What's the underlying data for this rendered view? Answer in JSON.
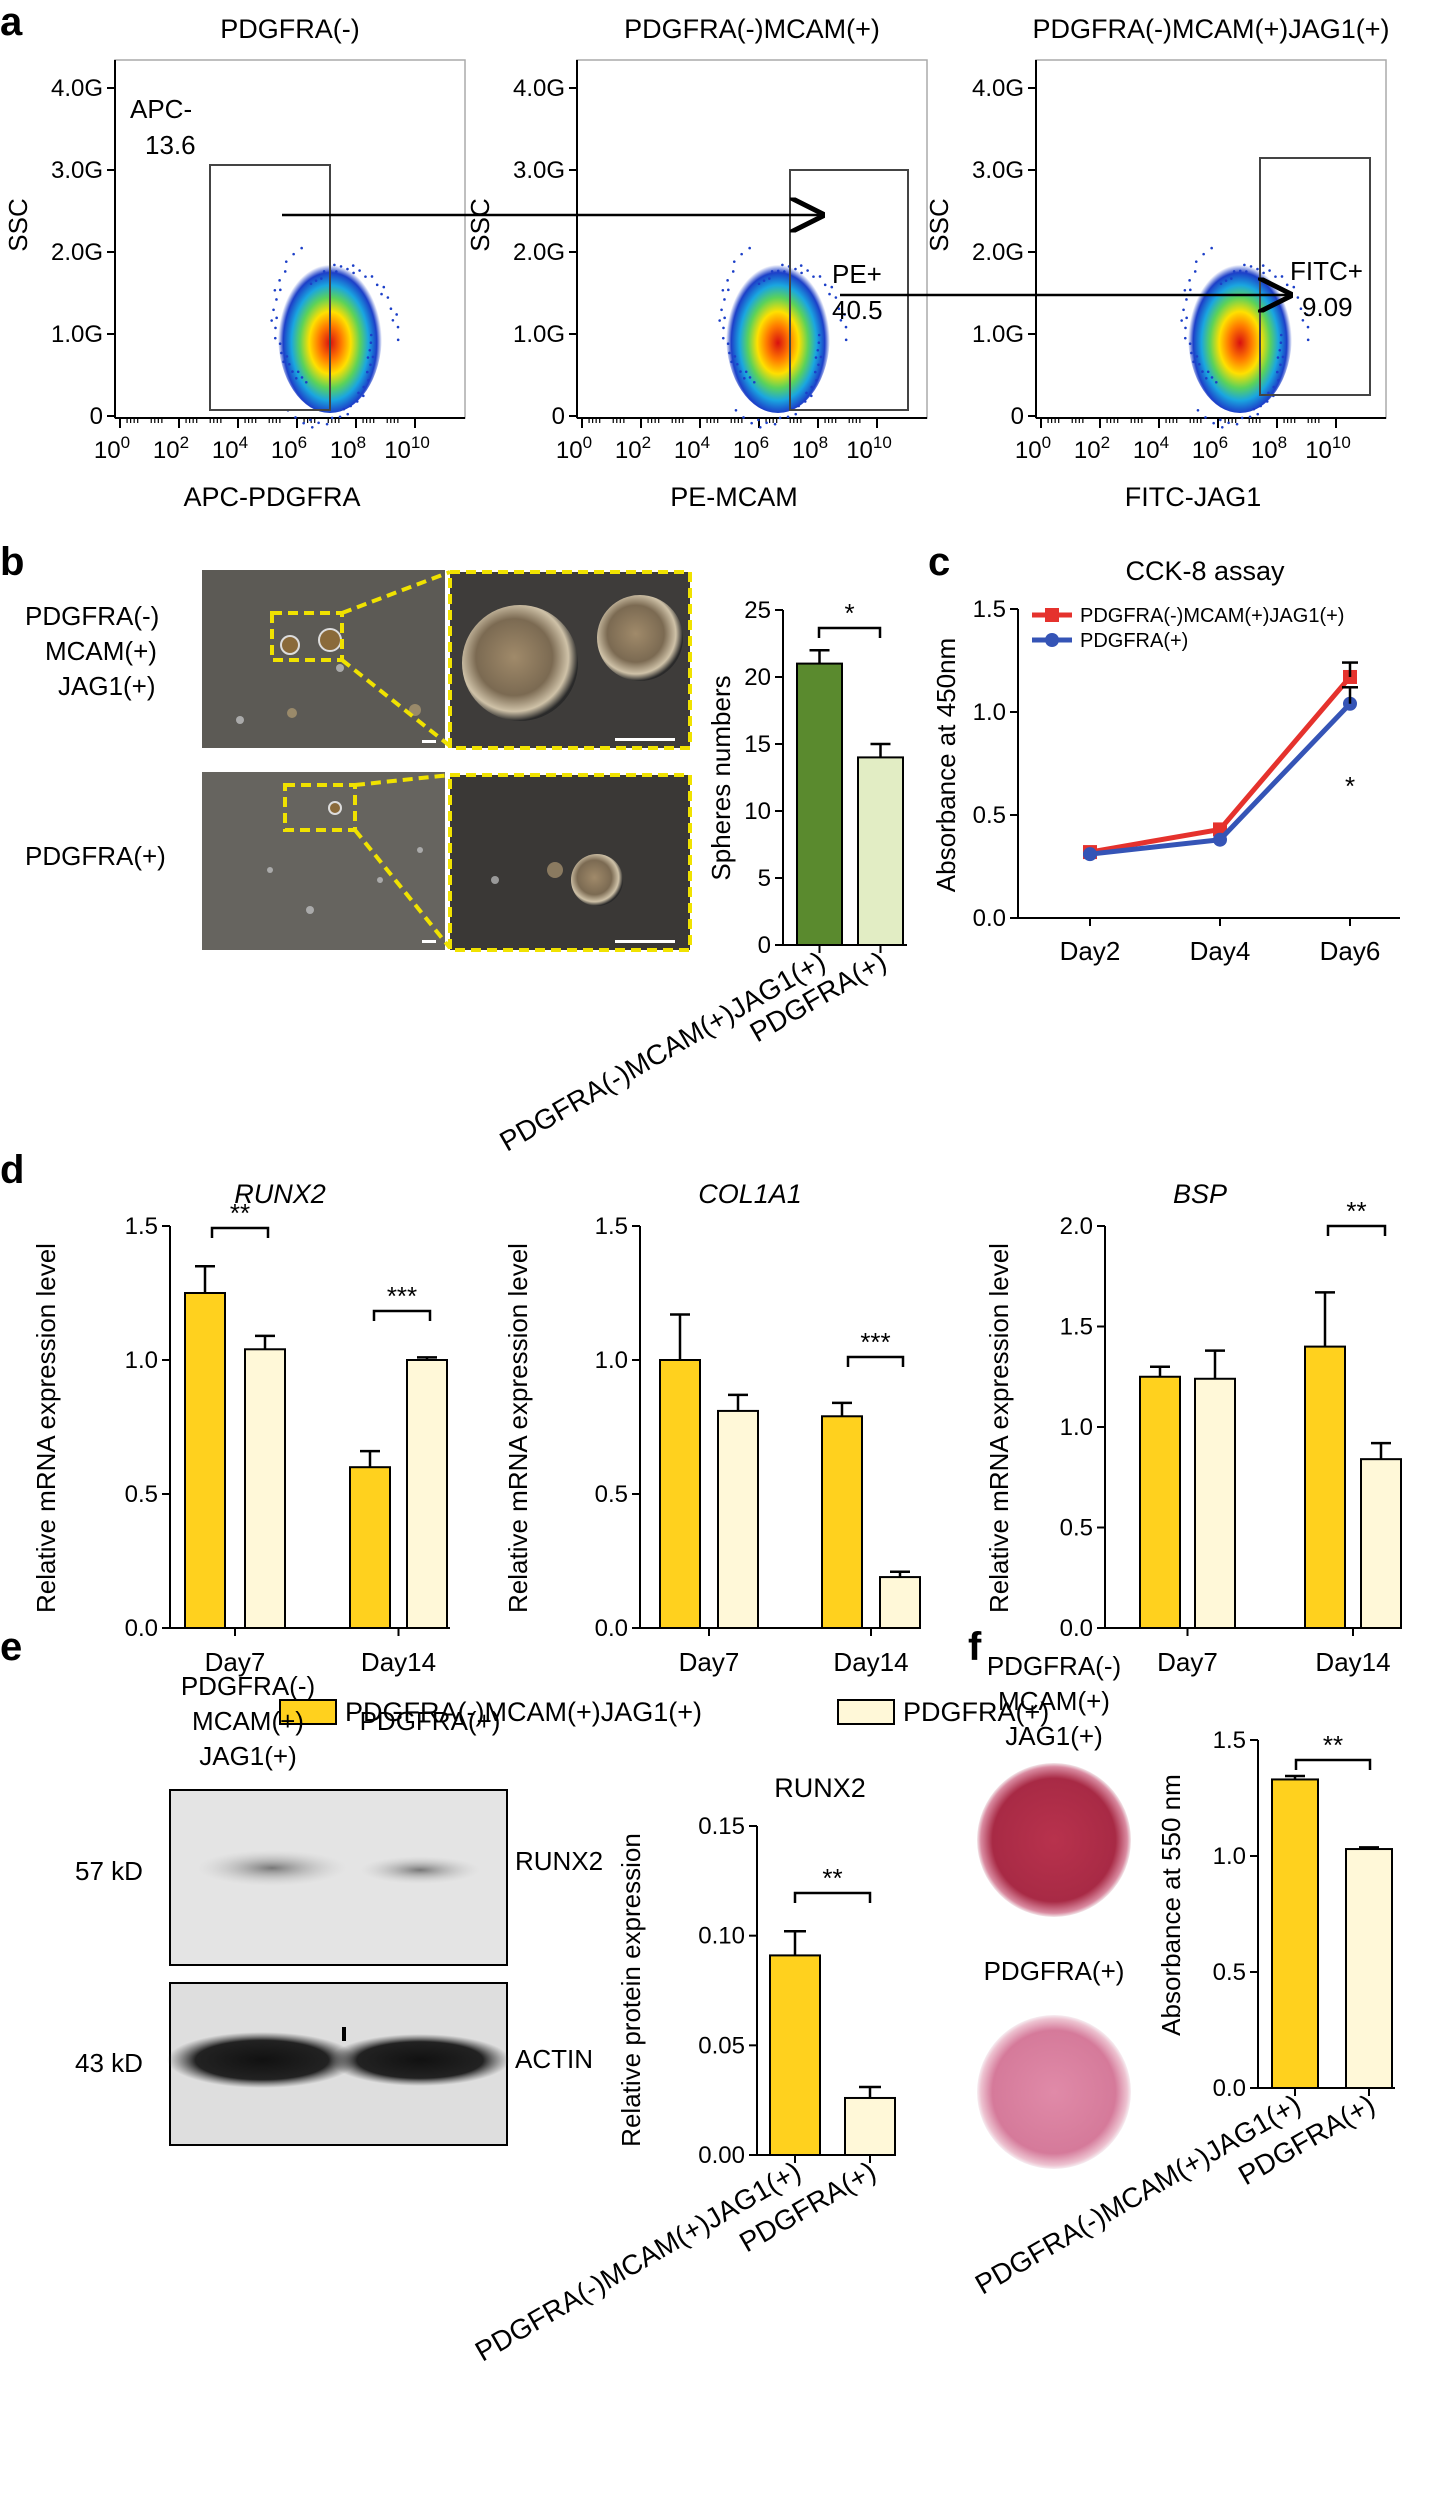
{
  "panel_letters": {
    "a": "a",
    "b": "b",
    "c": "c",
    "d": "d",
    "e": "e",
    "f": "f"
  },
  "colors": {
    "yellow": "#FFD11E",
    "cream": "#FFF8D8",
    "dark_green": "#5A8A2E",
    "light_green": "#E2EDC4",
    "red": "#E5322D",
    "blue": "#3554B6",
    "gate_border": "#444444",
    "dash_yellow": "#F0E200"
  },
  "panel_a": {
    "plots": [
      {
        "title": "PDGFRA(-)",
        "ylabel": "SSC",
        "xlabel": "APC-PDGFRA",
        "gate_label": "APC-",
        "gate_value": "13.6"
      },
      {
        "title": "PDGFRA(-)MCAM(+)",
        "ylabel": "SSC",
        "xlabel": "PE-MCAM",
        "gate_label": "PE+",
        "gate_value": "40.5"
      },
      {
        "title": "PDGFRA(-)MCAM(+)JAG1(+)",
        "ylabel": "SSC",
        "xlabel": "FITC-JAG1",
        "gate_label": "FITC+",
        "gate_value": "9.09"
      }
    ],
    "y_ticks": [
      "4.0G",
      "3.0G",
      "2.0G",
      "1.0G",
      "0"
    ],
    "x_ticks": [
      {
        "b": "10",
        "e": "0"
      },
      {
        "b": "10",
        "e": "2"
      },
      {
        "b": "10",
        "e": "4"
      },
      {
        "b": "10",
        "e": "6"
      },
      {
        "b": "10",
        "e": "8"
      },
      {
        "b": "10",
        "e": "10"
      }
    ]
  },
  "panel_b": {
    "row_labels": [
      [
        "PDGFRA(-)",
        "MCAM(+)",
        "JAG1(+)"
      ],
      [
        "PDGFRA(+)"
      ]
    ],
    "chart": {
      "ylabel": "Spheres numbers",
      "y_ticks": [
        "25",
        "20",
        "15",
        "10",
        "5",
        "0"
      ],
      "sig": "*"
    }
  },
  "panel_c": {
    "title": "CCK-8 assay",
    "ylabel": "Absorbance at 450nm",
    "legend": [
      "PDGFRA(-)MCAM(+)JAG1(+)",
      "PDGFRA(+)"
    ],
    "y_ticks": [
      "1.5",
      "1.0",
      "0.5",
      "0.0"
    ],
    "sig": "*"
  },
  "panel_d": {
    "ylabel": "Relative mRNA expression level",
    "charts": [
      {
        "title": "RUNX2",
        "y_ticks": [
          "1.5",
          "1.0",
          "0.5",
          "0.0"
        ],
        "sig": [
          "**",
          "***"
        ]
      },
      {
        "title": "COL1A1",
        "y_ticks": [
          "1.5",
          "1.0",
          "0.5",
          "0.0"
        ],
        "sig": [
          "***"
        ]
      },
      {
        "title": "BSP",
        "y_ticks": [
          "2.0",
          "1.5",
          "1.0",
          "0.5",
          "0.0"
        ],
        "sig": [
          "**"
        ]
      }
    ],
    "legend": [
      "PDGFRA(-)MCAM(+)JAG1(+)",
      "PDGFRA(+)"
    ]
  },
  "panel_e": {
    "col_labels": [
      [
        "PDGFRA(-)",
        "MCAM(+)",
        "JAG1(+)"
      ],
      [
        "PDGFRA(+)"
      ]
    ],
    "bands": [
      {
        "kd": "57 kD",
        "name": "RUNX2"
      },
      {
        "kd": "43 kD",
        "name": "ACTIN"
      }
    ],
    "chart": {
      "title": "RUNX2",
      "ylabel": "Relative protein expression",
      "y_ticks": [
        "0.15",
        "0.10",
        "0.05",
        "0.00"
      ],
      "sig": "**"
    }
  },
  "panel_f": {
    "row_labels": [
      [
        "PDGFRA(-)",
        "MCAM(+)",
        "JAG1(+)"
      ],
      [
        "PDGFRA(+)"
      ]
    ],
    "chart": {
      "ylabel": "Absorbance at 550 nm",
      "y_ticks": [
        "1.5",
        "1.0",
        "0.5",
        "0.0"
      ],
      "sig": "**"
    }
  },
  "chart_data": [
    {
      "id": "b",
      "type": "bar",
      "categories": [
        "PDGFRA(-)MCAM(+)JAG1(+)",
        "PDGFRA(+)"
      ],
      "values": [
        21,
        14
      ],
      "errors": [
        1,
        1
      ],
      "ylabel": "Spheres numbers",
      "ylim": [
        0,
        25
      ]
    },
    {
      "id": "c",
      "type": "line",
      "title": "CCK-8 assay",
      "x": [
        "Day2",
        "Day4",
        "Day6"
      ],
      "series": [
        {
          "name": "PDGFRA(-)MCAM(+)JAG1(+)",
          "values": [
            0.32,
            0.43,
            1.17
          ],
          "errors": [
            0.01,
            0.01,
            0.07
          ]
        },
        {
          "name": "PDGFRA(+)",
          "values": [
            0.31,
            0.38,
            1.04
          ],
          "errors": [
            0.01,
            0.01,
            0.08
          ]
        }
      ],
      "ylabel": "Absorbance at 450nm",
      "ylim": [
        0,
        1.5
      ]
    },
    {
      "id": "d1",
      "type": "bar",
      "title": "RUNX2",
      "categories": [
        "Day7",
        "Day14"
      ],
      "series": [
        {
          "name": "PDGFRA(-)MCAM(+)JAG1(+)",
          "values": [
            1.25,
            0.6
          ],
          "errors": [
            0.1,
            0.06
          ]
        },
        {
          "name": "PDGFRA(+)",
          "values": [
            1.04,
            1.0
          ],
          "errors": [
            0.05,
            0.01
          ]
        }
      ],
      "ylabel": "Relative mRNA expression level",
      "ylim": [
        0,
        1.5
      ]
    },
    {
      "id": "d2",
      "type": "bar",
      "title": "COL1A1",
      "categories": [
        "Day7",
        "Day14"
      ],
      "series": [
        {
          "name": "PDGFRA(-)MCAM(+)JAG1(+)",
          "values": [
            1.0,
            0.79
          ],
          "errors": [
            0.17,
            0.05
          ]
        },
        {
          "name": "PDGFRA(+)",
          "values": [
            0.81,
            0.19
          ],
          "errors": [
            0.06,
            0.02
          ]
        }
      ],
      "ylabel": "Relative mRNA expression level",
      "ylim": [
        0,
        1.5
      ]
    },
    {
      "id": "d3",
      "type": "bar",
      "title": "BSP",
      "categories": [
        "Day7",
        "Day14"
      ],
      "series": [
        {
          "name": "PDGFRA(-)MCAM(+)JAG1(+)",
          "values": [
            1.25,
            1.4
          ],
          "errors": [
            0.05,
            0.27
          ]
        },
        {
          "name": "PDGFRA(+)",
          "values": [
            1.24,
            0.84
          ],
          "errors": [
            0.14,
            0.08
          ]
        }
      ],
      "ylabel": "Relative mRNA expression level",
      "ylim": [
        0,
        2.0
      ]
    },
    {
      "id": "e",
      "type": "bar",
      "title": "RUNX2",
      "categories": [
        "PDGFRA(-)MCAM(+)JAG1(+)",
        "PDGFRA(+)"
      ],
      "values": [
        0.091,
        0.026
      ],
      "errors": [
        0.011,
        0.005
      ],
      "ylabel": "Relative protein expression",
      "ylim": [
        0,
        0.15
      ]
    },
    {
      "id": "f",
      "type": "bar",
      "categories": [
        "PDGFRA(-)MCAM(+)JAG1(+)",
        "PDGFRA(+)"
      ],
      "values": [
        1.33,
        1.03
      ],
      "errors": [
        0.015,
        0.007
      ],
      "ylabel": "Absorbance at 550 nm",
      "ylim": [
        0,
        1.5
      ]
    }
  ]
}
